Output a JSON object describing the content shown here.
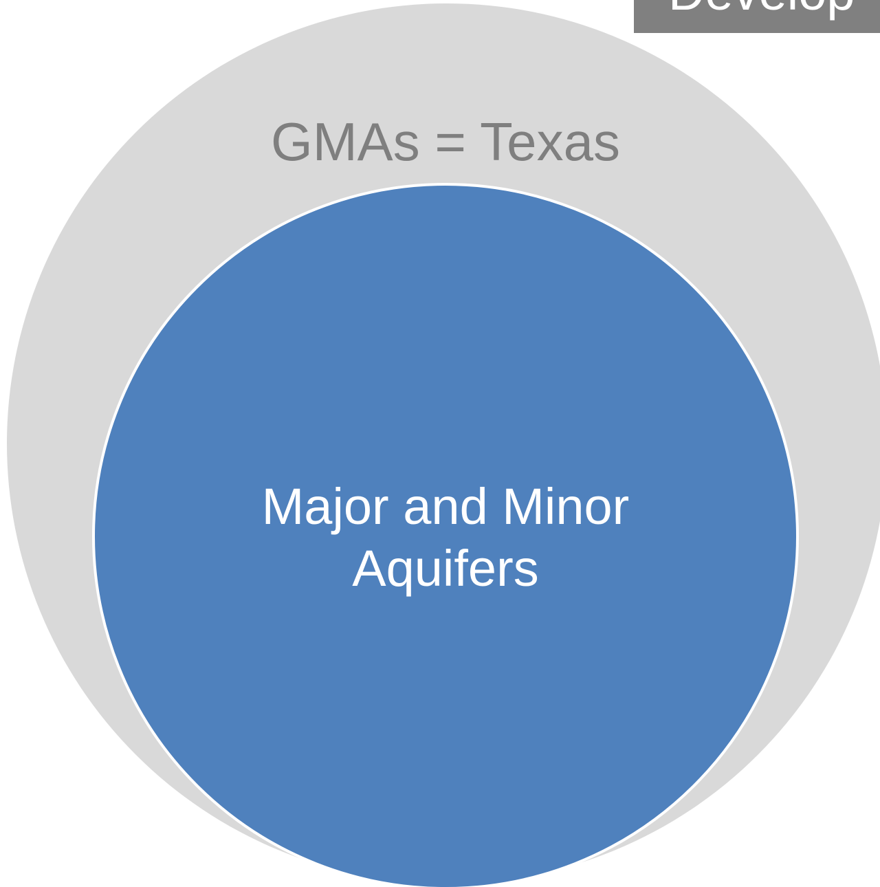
{
  "header": {
    "label": "Develop"
  },
  "outer_circle": {
    "label": "GMAs = Texas"
  },
  "inner_circle": {
    "label_lines": [
      "Major and Minor",
      "Aquifers"
    ]
  }
}
